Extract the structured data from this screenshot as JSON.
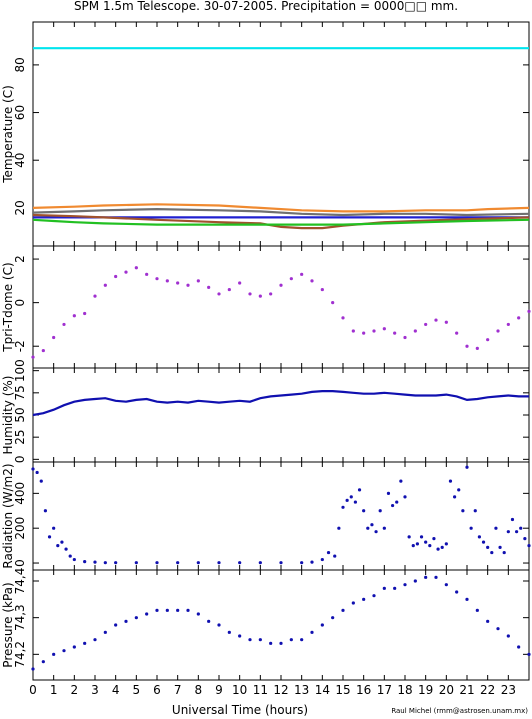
{
  "title": "SPM 1.5m Telescope. 30-07-2005. Precipitation = 0000□□ mm.",
  "credit": "Raul Michel (rmm@astrosen.unam.mx)",
  "colors": {
    "dome": "#00e5ee",
    "orange": "#f08a30",
    "gray": "#707070",
    "brown": "#a0522d",
    "blue": "#2020d0",
    "green": "#22c022",
    "red": "#c03020",
    "purple": "#a030d0",
    "darkblue": "#1010b0"
  },
  "chart_data": [
    {
      "type": "line",
      "ylabel": "Temperature (C)",
      "ylim": [
        4,
        98
      ],
      "yticks": [
        20,
        40,
        60,
        80
      ],
      "xlim": [
        0,
        24
      ],
      "series": [
        {
          "color_key": "dome",
          "x": [
            0,
            3.4,
            11,
            24
          ],
          "y": [
            87,
            87,
            87,
            87
          ],
          "gap": [
            3.4,
            11
          ]
        },
        {
          "color_key": "orange",
          "x": [
            0,
            2,
            3.4,
            6,
            9,
            11,
            13,
            15,
            17,
            19,
            21,
            22,
            24
          ],
          "y": [
            20,
            20.5,
            21,
            21.5,
            21,
            20,
            19,
            18.5,
            18.5,
            19,
            19,
            19.5,
            20
          ]
        },
        {
          "color_key": "gray",
          "x": [
            0,
            2,
            3.4,
            6,
            9,
            11,
            13,
            15,
            17,
            19,
            21,
            24
          ],
          "y": [
            18,
            18.5,
            19,
            19.5,
            19,
            18.5,
            17.5,
            17,
            17.5,
            17.5,
            17,
            17.5
          ]
        },
        {
          "color_key": "blue",
          "x": [
            0,
            24
          ],
          "y": [
            16,
            16
          ]
        },
        {
          "color_key": "brown",
          "x": [
            0,
            2,
            3.4,
            6,
            9,
            11,
            12,
            13,
            14,
            15,
            17,
            20,
            22,
            24
          ],
          "y": [
            17,
            16.5,
            16,
            15,
            14,
            13.5,
            12,
            11.5,
            11.5,
            12.5,
            14,
            15,
            15.5,
            16
          ]
        },
        {
          "color_key": "green",
          "x": [
            0,
            1,
            2,
            3.4,
            6,
            9,
            11,
            13,
            15,
            17,
            19,
            21,
            24
          ],
          "y": [
            15,
            14.5,
            14,
            13.5,
            13,
            13,
            13,
            13,
            13,
            13.5,
            14,
            14.5,
            15
          ]
        }
      ]
    },
    {
      "type": "scatter",
      "ylabel": "Tpri-Tdome (C)",
      "ylim": [
        -3,
        2.6
      ],
      "yticks": [
        -2,
        0,
        2
      ],
      "xlim": [
        0,
        24
      ],
      "color_key": "purple",
      "x": [
        0,
        0.5,
        1,
        1.5,
        2,
        2.5,
        3,
        3.5,
        4,
        4.5,
        5,
        5.5,
        6,
        6.5,
        7,
        7.5,
        8,
        8.5,
        9,
        9.5,
        10,
        10.5,
        11,
        11.5,
        12,
        12.5,
        13,
        13.5,
        14,
        14.5,
        15,
        15.5,
        16,
        16.5,
        17,
        17.5,
        18,
        18.5,
        19,
        19.5,
        20,
        20.5,
        21,
        21.5,
        22,
        22.5,
        23,
        23.5,
        24
      ],
      "y": [
        -2.5,
        -2.2,
        -1.6,
        -1.0,
        -0.6,
        -0.5,
        0.3,
        0.8,
        1.2,
        1.4,
        1.6,
        1.3,
        1.1,
        1.0,
        0.9,
        0.8,
        1.0,
        0.7,
        0.4,
        0.6,
        0.9,
        0.4,
        0.3,
        0.4,
        0.8,
        1.1,
        1.3,
        1.0,
        0.6,
        0.0,
        -0.7,
        -1.3,
        -1.4,
        -1.3,
        -1.2,
        -1.4,
        -1.6,
        -1.3,
        -1.0,
        -0.8,
        -0.9,
        -1.4,
        -2.0,
        -2.1,
        -1.7,
        -1.3,
        -1.0,
        -0.7,
        -0.4
      ]
    },
    {
      "type": "line",
      "ylabel": "Humidity (%)",
      "ylim": [
        -3,
        103
      ],
      "yticks": [
        0,
        25,
        50,
        75,
        100
      ],
      "xlim": [
        0,
        24
      ],
      "color_key": "darkblue",
      "x": [
        0,
        0.5,
        1,
        1.5,
        2,
        2.5,
        3,
        3.5,
        4,
        4.5,
        5,
        5.5,
        6,
        6.5,
        7,
        7.5,
        8,
        8.5,
        9,
        9.5,
        10,
        10.5,
        11,
        11.5,
        12,
        12.5,
        13,
        13.5,
        14,
        14.5,
        15,
        15.5,
        16,
        16.5,
        17,
        17.5,
        18,
        18.5,
        19,
        19.5,
        20,
        20.5,
        21,
        21.5,
        22,
        22.5,
        23,
        23.5,
        24
      ],
      "y": [
        50,
        52,
        56,
        61,
        65,
        67,
        68,
        69,
        66,
        65,
        67,
        68,
        65,
        64,
        65,
        64,
        66,
        65,
        64,
        65,
        66,
        65,
        69,
        71,
        72,
        73,
        74,
        76,
        77,
        77,
        76,
        75,
        74,
        74,
        75,
        74,
        73,
        72,
        72,
        72,
        73,
        71,
        67,
        68,
        70,
        71,
        72,
        71,
        71
      ]
    },
    {
      "type": "scatter",
      "ylabel": "Radiation (W/m2)",
      "ylim": [
        -40,
        580
      ],
      "yticks": [
        0,
        200,
        400
      ],
      "xlim": [
        0,
        24
      ],
      "color_key": "darkblue",
      "x": [
        0,
        0.2,
        0.4,
        0.6,
        0.8,
        1,
        1.2,
        1.4,
        1.6,
        1.8,
        2,
        2.5,
        3,
        3.5,
        4,
        5,
        6,
        7,
        8,
        9,
        10,
        11,
        12,
        13,
        13.5,
        14,
        14.3,
        14.6,
        14.8,
        15,
        15.2,
        15.4,
        15.6,
        15.8,
        16,
        16.2,
        16.4,
        16.6,
        16.8,
        17,
        17.2,
        17.4,
        17.6,
        17.8,
        18,
        18.2,
        18.4,
        18.6,
        18.8,
        19,
        19.2,
        19.4,
        19.6,
        19.8,
        20,
        20.2,
        20.4,
        20.6,
        20.8,
        21,
        21.2,
        21.4,
        21.6,
        21.8,
        22,
        22.2,
        22.4,
        22.6,
        22.8,
        23,
        23.2,
        23.4,
        23.6,
        23.8,
        24
      ],
      "y": [
        540,
        520,
        470,
        300,
        150,
        200,
        100,
        120,
        80,
        40,
        20,
        8,
        5,
        2,
        2,
        2,
        2,
        2,
        2,
        2,
        2,
        2,
        2,
        2,
        5,
        20,
        60,
        40,
        200,
        320,
        360,
        380,
        350,
        420,
        300,
        200,
        220,
        180,
        300,
        200,
        400,
        330,
        350,
        470,
        380,
        150,
        100,
        110,
        150,
        120,
        100,
        140,
        80,
        90,
        110,
        470,
        380,
        420,
        300,
        550,
        200,
        300,
        150,
        120,
        90,
        60,
        200,
        90,
        60,
        180,
        250,
        180,
        200,
        140,
        100
      ]
    },
    {
      "type": "scatter",
      "ylabel": "Pressure (kPa)",
      "ylim": [
        74.13,
        74.43
      ],
      "yticks": [
        74.2,
        74.3,
        74.4
      ],
      "yticklabels": [
        "74,2",
        "74,3",
        "74,4"
      ],
      "xlim": [
        0,
        24
      ],
      "xlabel": "Universal Time (hours)",
      "xticks": [
        0,
        1,
        2,
        3,
        4,
        5,
        6,
        7,
        8,
        9,
        10,
        11,
        12,
        13,
        14,
        15,
        16,
        17,
        18,
        19,
        20,
        21,
        22,
        23
      ],
      "color_key": "darkblue",
      "x": [
        0,
        0.5,
        1,
        1.5,
        2,
        2.5,
        3,
        3.5,
        4,
        4.5,
        5,
        5.5,
        6,
        6.5,
        7,
        7.5,
        8,
        8.5,
        9,
        9.5,
        10,
        10.5,
        11,
        11.5,
        12,
        12.5,
        13,
        13.5,
        14,
        14.5,
        15,
        15.5,
        16,
        16.5,
        17,
        17.5,
        18,
        18.5,
        19,
        19.5,
        20,
        20.5,
        21,
        21.5,
        22,
        22.5,
        23,
        23.5,
        24
      ],
      "y": [
        74.16,
        74.18,
        74.2,
        74.21,
        74.22,
        74.23,
        74.24,
        74.26,
        74.28,
        74.29,
        74.3,
        74.31,
        74.32,
        74.32,
        74.32,
        74.32,
        74.31,
        74.29,
        74.28,
        74.26,
        74.25,
        74.24,
        74.24,
        74.23,
        74.23,
        74.24,
        74.24,
        74.26,
        74.28,
        74.3,
        74.32,
        74.34,
        74.35,
        74.36,
        74.38,
        74.38,
        74.39,
        74.4,
        74.41,
        74.41,
        74.39,
        74.37,
        74.35,
        74.32,
        74.29,
        74.27,
        74.25,
        74.22,
        74.2
      ]
    }
  ]
}
